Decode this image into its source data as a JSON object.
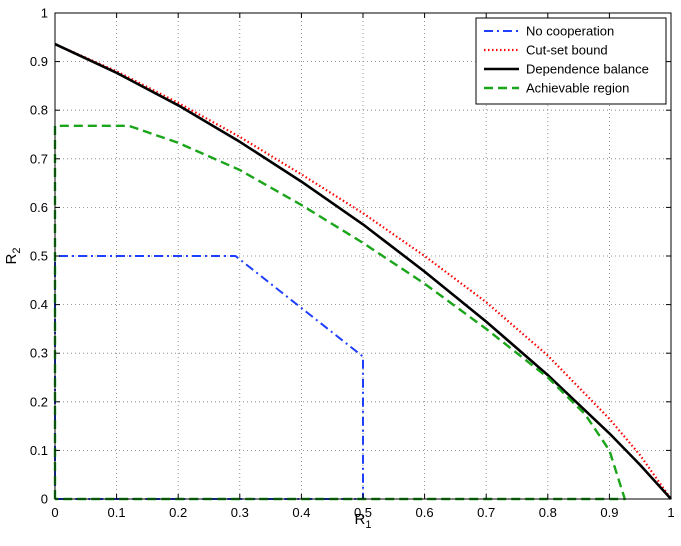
{
  "chart_data": {
    "type": "line",
    "title": "",
    "xlabel": {
      "main": "R",
      "sub": "1"
    },
    "ylabel": {
      "main": "R",
      "sub": "2"
    },
    "xlim": [
      0,
      1
    ],
    "ylim": [
      0,
      1
    ],
    "xticks": [
      "0",
      "0.1",
      "0.2",
      "0.3",
      "0.4",
      "0.5",
      "0.6",
      "0.7",
      "0.8",
      "0.9",
      "1"
    ],
    "yticks": [
      "0",
      "0.1",
      "0.2",
      "0.3",
      "0.4",
      "0.5",
      "0.6",
      "0.7",
      "0.8",
      "0.9",
      "1"
    ],
    "grid": true,
    "legend_position": "top-right",
    "series": [
      {
        "name": "No cooperation",
        "color": "#1f3fff",
        "style": "dash-dot",
        "points": [
          [
            0,
            0
          ],
          [
            0,
            0.5
          ],
          [
            0.293,
            0.5
          ],
          [
            0.5,
            0.293
          ],
          [
            0.5,
            0
          ],
          [
            0,
            0
          ]
        ]
      },
      {
        "name": "Cut-set bound",
        "color": "#ff0000",
        "style": "dotted",
        "points": [
          [
            0,
            0.936
          ],
          [
            0.1,
            0.88
          ],
          [
            0.2,
            0.815
          ],
          [
            0.3,
            0.745
          ],
          [
            0.4,
            0.668
          ],
          [
            0.5,
            0.588
          ],
          [
            0.6,
            0.5
          ],
          [
            0.7,
            0.405
          ],
          [
            0.8,
            0.295
          ],
          [
            0.9,
            0.165
          ],
          [
            0.95,
            0.09
          ],
          [
            1.0,
            0
          ]
        ]
      },
      {
        "name": "Dependence balance",
        "color": "#000000",
        "style": "solid",
        "points": [
          [
            0,
            0.936
          ],
          [
            0.1,
            0.877
          ],
          [
            0.2,
            0.81
          ],
          [
            0.3,
            0.735
          ],
          [
            0.4,
            0.653
          ],
          [
            0.5,
            0.565
          ],
          [
            0.6,
            0.468
          ],
          [
            0.7,
            0.365
          ],
          [
            0.8,
            0.255
          ],
          [
            0.9,
            0.135
          ],
          [
            0.95,
            0.07
          ],
          [
            1.0,
            0
          ]
        ]
      },
      {
        "name": "Achievable region",
        "color": "#1aa51a",
        "style": "dashed",
        "points": [
          [
            0,
            0
          ],
          [
            0,
            0.768
          ],
          [
            0.12,
            0.768
          ],
          [
            0.2,
            0.733
          ],
          [
            0.3,
            0.677
          ],
          [
            0.4,
            0.605
          ],
          [
            0.5,
            0.527
          ],
          [
            0.6,
            0.443
          ],
          [
            0.7,
            0.35
          ],
          [
            0.8,
            0.25
          ],
          [
            0.86,
            0.175
          ],
          [
            0.9,
            0.1
          ],
          [
            0.925,
            0
          ],
          [
            0,
            0
          ]
        ]
      }
    ]
  }
}
